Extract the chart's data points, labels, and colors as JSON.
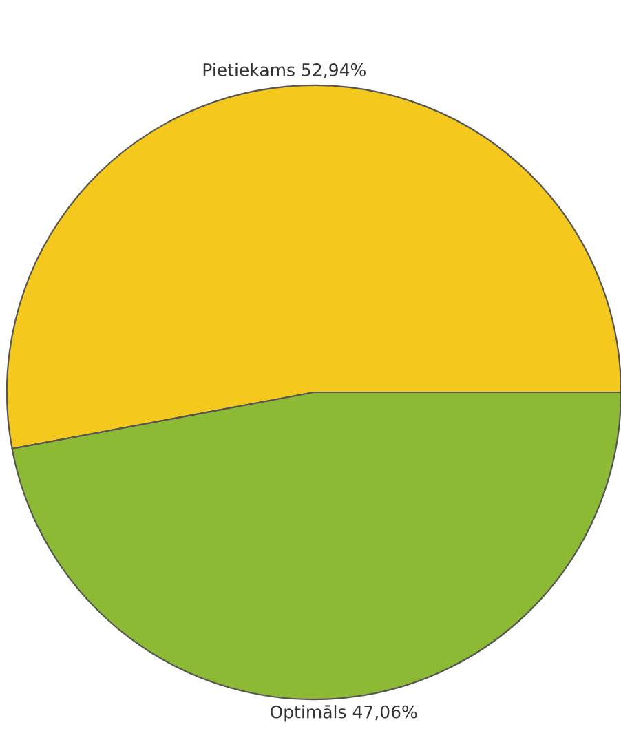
{
  "chart_data": {
    "type": "pie",
    "categories": [
      "Pietiekams",
      "Optimāls"
    ],
    "values": [
      52.94,
      47.06
    ],
    "value_labels": [
      "52,94%",
      "47,06%"
    ],
    "colors": [
      "#f5c81e",
      "#8dba34"
    ],
    "legend": false
  }
}
